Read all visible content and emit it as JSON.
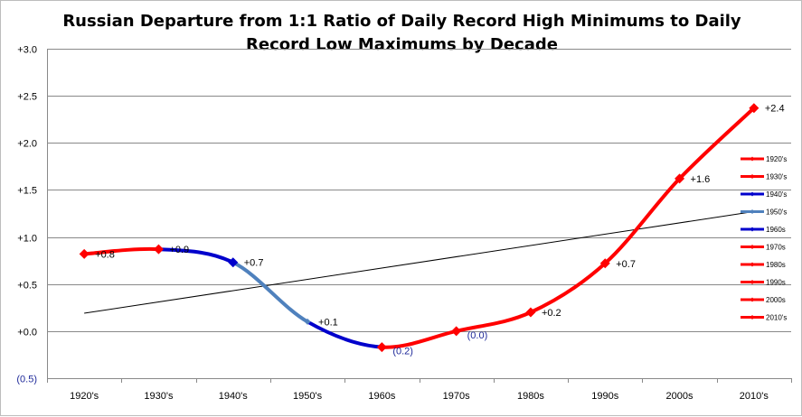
{
  "chart_data": {
    "type": "line",
    "title_line1": "Russian Departure from 1:1 Ratio of Daily Record High Minimums to Daily",
    "title_line2": "Record Low Maximums by Decade",
    "categories": [
      "1920's",
      "1930's",
      "1940's",
      "1950's",
      "1960s",
      "1970s",
      "1980s",
      "1990s",
      "2000s",
      "2010's"
    ],
    "values": [
      0.82,
      0.87,
      0.73,
      0.1,
      -0.17,
      0.0,
      0.2,
      0.72,
      1.62,
      2.37
    ],
    "data_labels": [
      "+0.8",
      "+0.9",
      "+0.7",
      "+0.1",
      "(0.2)",
      "(0.0)",
      "+0.2",
      "+0.7",
      "+1.6",
      "+2.4"
    ],
    "segment_colors": [
      "#ff0000",
      "#0000cc",
      "#4f81bd",
      "#0000cc",
      "#ff0000",
      "#ff0000",
      "#ff0000",
      "#ff0000",
      "#ff0000"
    ],
    "marker_colors": [
      "#ff0000",
      "#ff0000",
      "#0000cc",
      "#4f81bd",
      "#ff0000",
      "#ff0000",
      "#ff0000",
      "#ff0000",
      "#ff0000",
      "#ff0000"
    ],
    "trendline": {
      "start": 0.19,
      "end": 1.27,
      "color": "#000000"
    },
    "y_tick_labels": [
      "+3.0",
      "+2.5",
      "+2.0",
      "+1.5",
      "+1.0",
      "+0.5",
      "+0.0",
      "(0.5)"
    ],
    "y_tick_values": [
      3.0,
      2.5,
      2.0,
      1.5,
      1.0,
      0.5,
      0.0,
      -0.5
    ],
    "ylim": [
      -0.5,
      3.0
    ],
    "grid": true,
    "legend": {
      "placement": "right",
      "entries": [
        {
          "name": "1920's",
          "color": "#ff0000"
        },
        {
          "name": "1930's",
          "color": "#ff0000"
        },
        {
          "name": "1940's",
          "color": "#0000cc"
        },
        {
          "name": "1950's",
          "color": "#4f81bd"
        },
        {
          "name": "1960s",
          "color": "#0000cc"
        },
        {
          "name": "1970s",
          "color": "#ff0000"
        },
        {
          "name": "1980s",
          "color": "#ff0000"
        },
        {
          "name": "1990s",
          "color": "#ff0000"
        },
        {
          "name": "2000s",
          "color": "#ff0000"
        },
        {
          "name": "2010's",
          "color": "#ff0000"
        }
      ]
    },
    "colors": {
      "gridline": "#898989",
      "axis": "#898989",
      "negative_label": "#1f2a9a"
    }
  }
}
